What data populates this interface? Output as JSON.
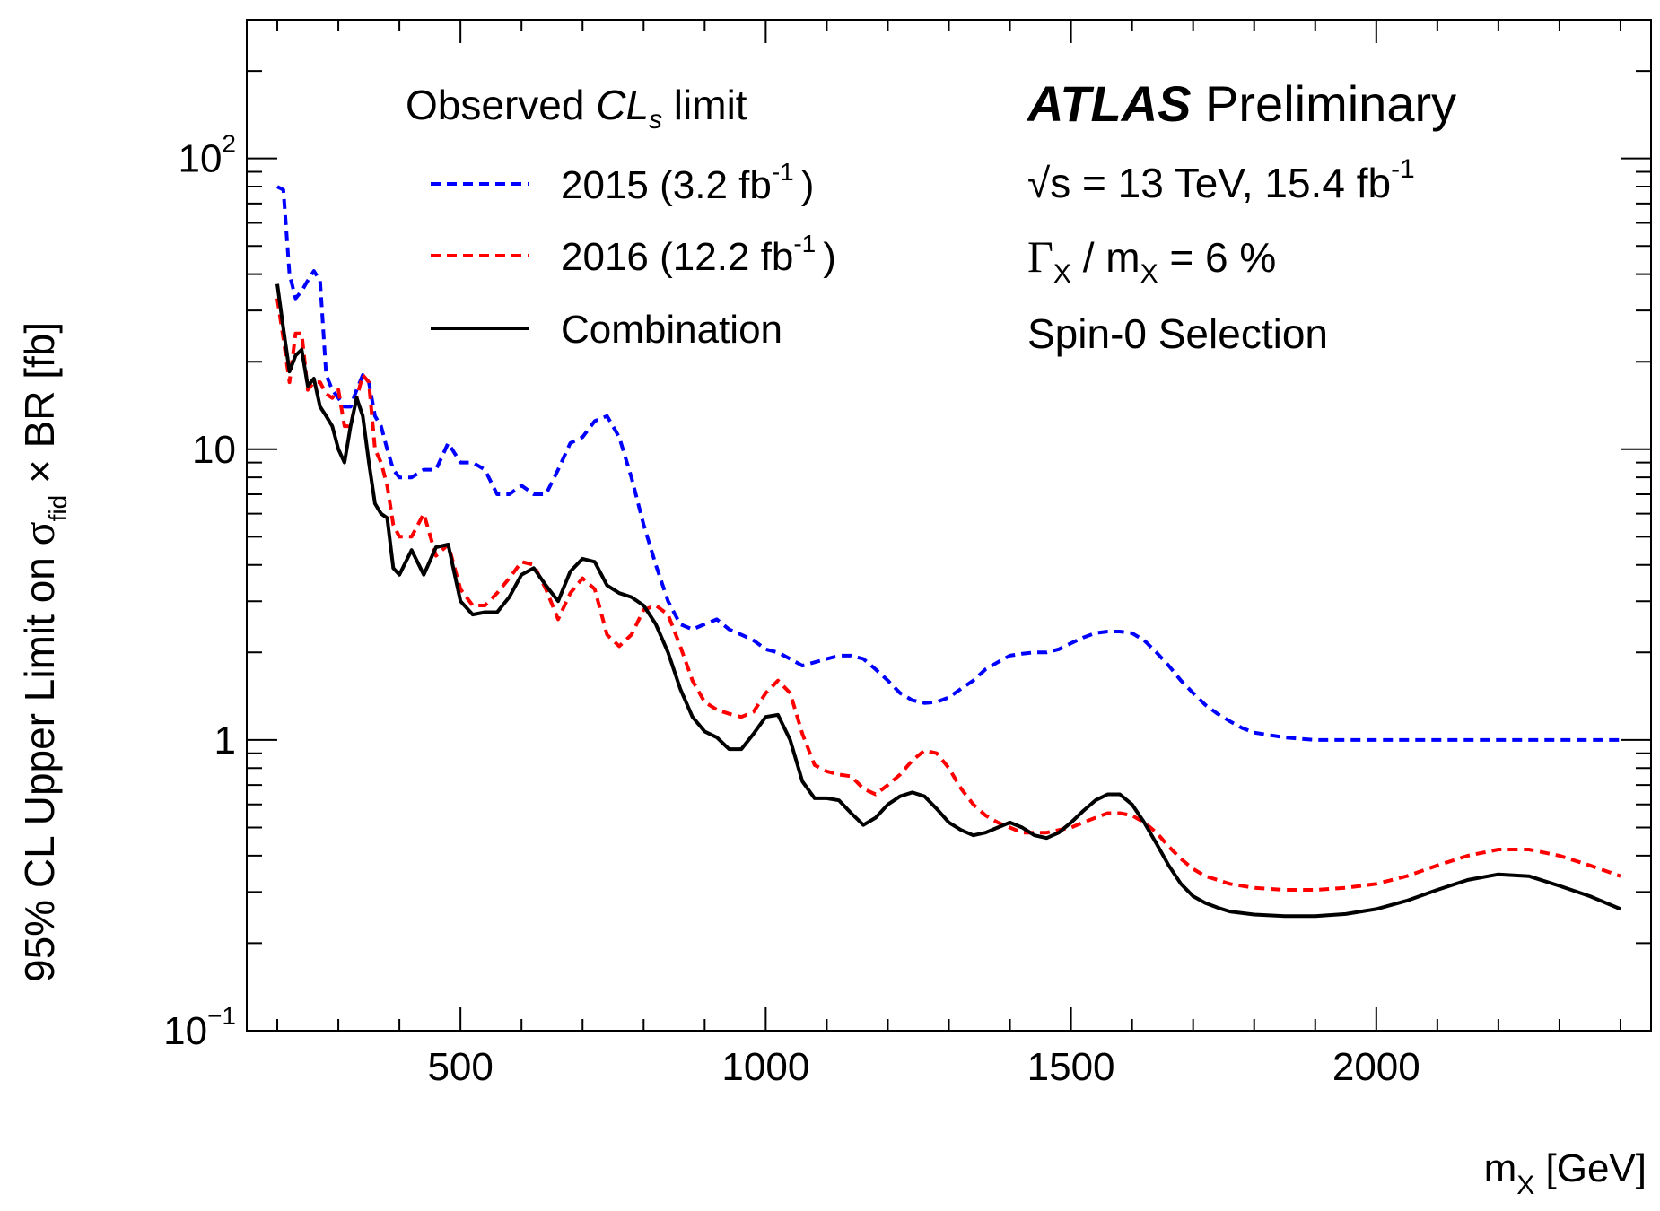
{
  "chart_data": {
    "type": "line",
    "xlabel": {
      "main": "m",
      "sub": "X",
      "tail": " [GeV]"
    },
    "ylabel": {
      "pre": "95% CL Upper Limit on ",
      "sigma": "σ",
      "sub": "fid",
      "post": " × BR [fb]"
    },
    "xlim": [
      150,
      2450
    ],
    "ylim": [
      0.1,
      300
    ],
    "yscale": "log",
    "x_ticks": [
      500,
      1000,
      1500,
      2000
    ],
    "x_tick_labels": [
      "500",
      "1000",
      "1500",
      "2000"
    ],
    "y_tick_labels": [
      {
        "value": 0.1,
        "base": "10",
        "exp": "−1"
      },
      {
        "value": 1,
        "base": "1",
        "exp": ""
      },
      {
        "value": 10,
        "base": "10",
        "exp": ""
      },
      {
        "value": 100,
        "base": "10",
        "exp": "2"
      }
    ],
    "grid": false,
    "legend_position": "top-left",
    "legend": {
      "title_pre": "Observed ",
      "title_cl": "CL",
      "title_sub": "s",
      "title_post": " limit",
      "entries": [
        "2015 (3.2 fb",
        "2016 (12.2 fb",
        "Combination"
      ],
      "lumi_exp": "-1",
      "close_paren": ")"
    },
    "annotations": {
      "atlas": "ATLAS",
      "preliminary": " Preliminary",
      "energy_pre": "√s = 13 TeV, 15.4 fb",
      "energy_exp": "-1",
      "width_gamma": "Γ",
      "width_sub1": "X",
      "width_mid": " / m",
      "width_sub2": "X",
      "width_post": " = 6 %",
      "selection": "Spin-0 Selection"
    },
    "series": [
      {
        "name": "2015 (3.2 fb-1)",
        "color": "#0000ff",
        "style": "dashed",
        "points": [
          [
            200,
            80
          ],
          [
            210,
            78
          ],
          [
            220,
            40
          ],
          [
            230,
            33
          ],
          [
            240,
            35
          ],
          [
            250,
            38
          ],
          [
            260,
            41
          ],
          [
            270,
            38
          ],
          [
            280,
            18
          ],
          [
            290,
            16
          ],
          [
            300,
            15
          ],
          [
            310,
            14
          ],
          [
            320,
            14
          ],
          [
            330,
            16
          ],
          [
            340,
            18
          ],
          [
            350,
            17
          ],
          [
            360,
            13
          ],
          [
            370,
            12
          ],
          [
            380,
            10
          ],
          [
            390,
            8.5
          ],
          [
            400,
            8
          ],
          [
            420,
            8
          ],
          [
            440,
            8.5
          ],
          [
            460,
            8.5
          ],
          [
            480,
            10.5
          ],
          [
            500,
            9
          ],
          [
            520,
            9
          ],
          [
            540,
            8.5
          ],
          [
            560,
            7
          ],
          [
            580,
            7
          ],
          [
            600,
            7.5
          ],
          [
            620,
            7
          ],
          [
            640,
            7
          ],
          [
            660,
            8.5
          ],
          [
            680,
            10.5
          ],
          [
            700,
            11
          ],
          [
            720,
            12.5
          ],
          [
            740,
            13
          ],
          [
            760,
            11
          ],
          [
            780,
            8
          ],
          [
            800,
            5.5
          ],
          [
            820,
            4
          ],
          [
            840,
            3
          ],
          [
            860,
            2.5
          ],
          [
            880,
            2.4
          ],
          [
            900,
            2.5
          ],
          [
            920,
            2.6
          ],
          [
            940,
            2.4
          ],
          [
            960,
            2.3
          ],
          [
            980,
            2.2
          ],
          [
            1000,
            2.05
          ],
          [
            1020,
            2.0
          ],
          [
            1040,
            1.9
          ],
          [
            1060,
            1.8
          ],
          [
            1080,
            1.85
          ],
          [
            1100,
            1.9
          ],
          [
            1120,
            1.95
          ],
          [
            1140,
            1.95
          ],
          [
            1160,
            1.9
          ],
          [
            1180,
            1.75
          ],
          [
            1200,
            1.6
          ],
          [
            1220,
            1.45
          ],
          [
            1240,
            1.37
          ],
          [
            1260,
            1.34
          ],
          [
            1280,
            1.35
          ],
          [
            1300,
            1.4
          ],
          [
            1320,
            1.5
          ],
          [
            1340,
            1.6
          ],
          [
            1360,
            1.75
          ],
          [
            1380,
            1.85
          ],
          [
            1400,
            1.95
          ],
          [
            1420,
            1.98
          ],
          [
            1440,
            2.0
          ],
          [
            1460,
            2.0
          ],
          [
            1480,
            2.05
          ],
          [
            1500,
            2.15
          ],
          [
            1520,
            2.25
          ],
          [
            1540,
            2.33
          ],
          [
            1560,
            2.36
          ],
          [
            1580,
            2.36
          ],
          [
            1600,
            2.33
          ],
          [
            1620,
            2.2
          ],
          [
            1640,
            2.0
          ],
          [
            1660,
            1.8
          ],
          [
            1680,
            1.6
          ],
          [
            1700,
            1.45
          ],
          [
            1720,
            1.32
          ],
          [
            1740,
            1.23
          ],
          [
            1760,
            1.16
          ],
          [
            1780,
            1.1
          ],
          [
            1800,
            1.06
          ],
          [
            1850,
            1.02
          ],
          [
            1900,
            1.0
          ],
          [
            2000,
            1.0
          ],
          [
            2100,
            1.0
          ],
          [
            2200,
            1.0
          ],
          [
            2300,
            1.0
          ],
          [
            2400,
            1.0
          ]
        ]
      },
      {
        "name": "2016 (12.2 fb-1)",
        "color": "#ff0000",
        "style": "dashed",
        "points": [
          [
            200,
            33
          ],
          [
            210,
            24
          ],
          [
            220,
            17
          ],
          [
            230,
            25
          ],
          [
            240,
            25
          ],
          [
            250,
            16
          ],
          [
            260,
            17
          ],
          [
            270,
            17
          ],
          [
            280,
            15.5
          ],
          [
            290,
            15
          ],
          [
            300,
            16
          ],
          [
            310,
            12
          ],
          [
            320,
            12
          ],
          [
            330,
            15
          ],
          [
            340,
            18
          ],
          [
            350,
            17
          ],
          [
            360,
            10
          ],
          [
            370,
            9
          ],
          [
            380,
            7.5
          ],
          [
            390,
            5.5
          ],
          [
            400,
            5
          ],
          [
            420,
            5
          ],
          [
            440,
            6
          ],
          [
            460,
            4.3
          ],
          [
            480,
            4.7
          ],
          [
            500,
            3.3
          ],
          [
            520,
            2.9
          ],
          [
            540,
            2.9
          ],
          [
            560,
            3.2
          ],
          [
            580,
            3.6
          ],
          [
            600,
            4.1
          ],
          [
            620,
            4.0
          ],
          [
            640,
            3.3
          ],
          [
            660,
            2.6
          ],
          [
            680,
            3.2
          ],
          [
            700,
            3.6
          ],
          [
            720,
            3.3
          ],
          [
            740,
            2.3
          ],
          [
            760,
            2.1
          ],
          [
            780,
            2.3
          ],
          [
            800,
            2.8
          ],
          [
            820,
            2.9
          ],
          [
            840,
            2.7
          ],
          [
            860,
            2.1
          ],
          [
            880,
            1.6
          ],
          [
            900,
            1.35
          ],
          [
            920,
            1.27
          ],
          [
            940,
            1.23
          ],
          [
            960,
            1.2
          ],
          [
            980,
            1.25
          ],
          [
            1000,
            1.45
          ],
          [
            1020,
            1.6
          ],
          [
            1040,
            1.45
          ],
          [
            1060,
            1.05
          ],
          [
            1080,
            0.82
          ],
          [
            1100,
            0.78
          ],
          [
            1120,
            0.76
          ],
          [
            1140,
            0.75
          ],
          [
            1160,
            0.68
          ],
          [
            1180,
            0.65
          ],
          [
            1200,
            0.7
          ],
          [
            1220,
            0.76
          ],
          [
            1240,
            0.85
          ],
          [
            1260,
            0.92
          ],
          [
            1280,
            0.9
          ],
          [
            1300,
            0.8
          ],
          [
            1320,
            0.68
          ],
          [
            1340,
            0.6
          ],
          [
            1360,
            0.55
          ],
          [
            1380,
            0.52
          ],
          [
            1400,
            0.5
          ],
          [
            1420,
            0.48
          ],
          [
            1440,
            0.48
          ],
          [
            1460,
            0.48
          ],
          [
            1480,
            0.49
          ],
          [
            1500,
            0.5
          ],
          [
            1520,
            0.52
          ],
          [
            1540,
            0.54
          ],
          [
            1560,
            0.56
          ],
          [
            1580,
            0.56
          ],
          [
            1600,
            0.55
          ],
          [
            1620,
            0.52
          ],
          [
            1640,
            0.48
          ],
          [
            1660,
            0.43
          ],
          [
            1680,
            0.39
          ],
          [
            1700,
            0.36
          ],
          [
            1720,
            0.34
          ],
          [
            1740,
            0.33
          ],
          [
            1760,
            0.32
          ],
          [
            1800,
            0.31
          ],
          [
            1850,
            0.305
          ],
          [
            1900,
            0.305
          ],
          [
            1950,
            0.31
          ],
          [
            2000,
            0.32
          ],
          [
            2050,
            0.34
          ],
          [
            2100,
            0.37
          ],
          [
            2150,
            0.4
          ],
          [
            2200,
            0.42
          ],
          [
            2250,
            0.42
          ],
          [
            2300,
            0.4
          ],
          [
            2350,
            0.37
          ],
          [
            2400,
            0.34
          ]
        ]
      },
      {
        "name": "Combination",
        "color": "#000000",
        "style": "solid",
        "points": [
          [
            200,
            37
          ],
          [
            210,
            26
          ],
          [
            220,
            18.5
          ],
          [
            230,
            21
          ],
          [
            240,
            22
          ],
          [
            250,
            16.5
          ],
          [
            260,
            17.5
          ],
          [
            270,
            14
          ],
          [
            280,
            13
          ],
          [
            290,
            12
          ],
          [
            300,
            10
          ],
          [
            310,
            9
          ],
          [
            320,
            12
          ],
          [
            330,
            15
          ],
          [
            340,
            13
          ],
          [
            350,
            9
          ],
          [
            360,
            6.5
          ],
          [
            370,
            6
          ],
          [
            380,
            5.8
          ],
          [
            390,
            3.9
          ],
          [
            400,
            3.7
          ],
          [
            420,
            4.5
          ],
          [
            440,
            3.7
          ],
          [
            460,
            4.6
          ],
          [
            480,
            4.7
          ],
          [
            500,
            3.0
          ],
          [
            520,
            2.7
          ],
          [
            540,
            2.75
          ],
          [
            560,
            2.75
          ],
          [
            580,
            3.1
          ],
          [
            600,
            3.7
          ],
          [
            620,
            3.9
          ],
          [
            640,
            3.4
          ],
          [
            660,
            3.0
          ],
          [
            680,
            3.8
          ],
          [
            700,
            4.2
          ],
          [
            720,
            4.1
          ],
          [
            740,
            3.4
          ],
          [
            760,
            3.2
          ],
          [
            780,
            3.1
          ],
          [
            800,
            2.9
          ],
          [
            820,
            2.5
          ],
          [
            840,
            2.0
          ],
          [
            860,
            1.5
          ],
          [
            880,
            1.2
          ],
          [
            900,
            1.07
          ],
          [
            920,
            1.02
          ],
          [
            940,
            0.93
          ],
          [
            960,
            0.93
          ],
          [
            980,
            1.05
          ],
          [
            1000,
            1.2
          ],
          [
            1020,
            1.22
          ],
          [
            1040,
            1.0
          ],
          [
            1060,
            0.72
          ],
          [
            1080,
            0.63
          ],
          [
            1100,
            0.63
          ],
          [
            1120,
            0.62
          ],
          [
            1140,
            0.56
          ],
          [
            1160,
            0.51
          ],
          [
            1180,
            0.54
          ],
          [
            1200,
            0.6
          ],
          [
            1220,
            0.64
          ],
          [
            1240,
            0.66
          ],
          [
            1260,
            0.64
          ],
          [
            1280,
            0.58
          ],
          [
            1300,
            0.52
          ],
          [
            1320,
            0.49
          ],
          [
            1340,
            0.47
          ],
          [
            1360,
            0.48
          ],
          [
            1380,
            0.5
          ],
          [
            1400,
            0.52
          ],
          [
            1420,
            0.5
          ],
          [
            1440,
            0.47
          ],
          [
            1460,
            0.46
          ],
          [
            1480,
            0.48
          ],
          [
            1500,
            0.52
          ],
          [
            1520,
            0.57
          ],
          [
            1540,
            0.62
          ],
          [
            1560,
            0.65
          ],
          [
            1580,
            0.65
          ],
          [
            1600,
            0.6
          ],
          [
            1620,
            0.52
          ],
          [
            1640,
            0.44
          ],
          [
            1660,
            0.37
          ],
          [
            1680,
            0.32
          ],
          [
            1700,
            0.29
          ],
          [
            1720,
            0.275
          ],
          [
            1740,
            0.265
          ],
          [
            1760,
            0.257
          ],
          [
            1800,
            0.251
          ],
          [
            1850,
            0.248
          ],
          [
            1900,
            0.248
          ],
          [
            1950,
            0.252
          ],
          [
            2000,
            0.262
          ],
          [
            2050,
            0.28
          ],
          [
            2100,
            0.305
          ],
          [
            2150,
            0.33
          ],
          [
            2200,
            0.345
          ],
          [
            2250,
            0.34
          ],
          [
            2300,
            0.315
          ],
          [
            2350,
            0.29
          ],
          [
            2400,
            0.262
          ]
        ]
      }
    ]
  }
}
